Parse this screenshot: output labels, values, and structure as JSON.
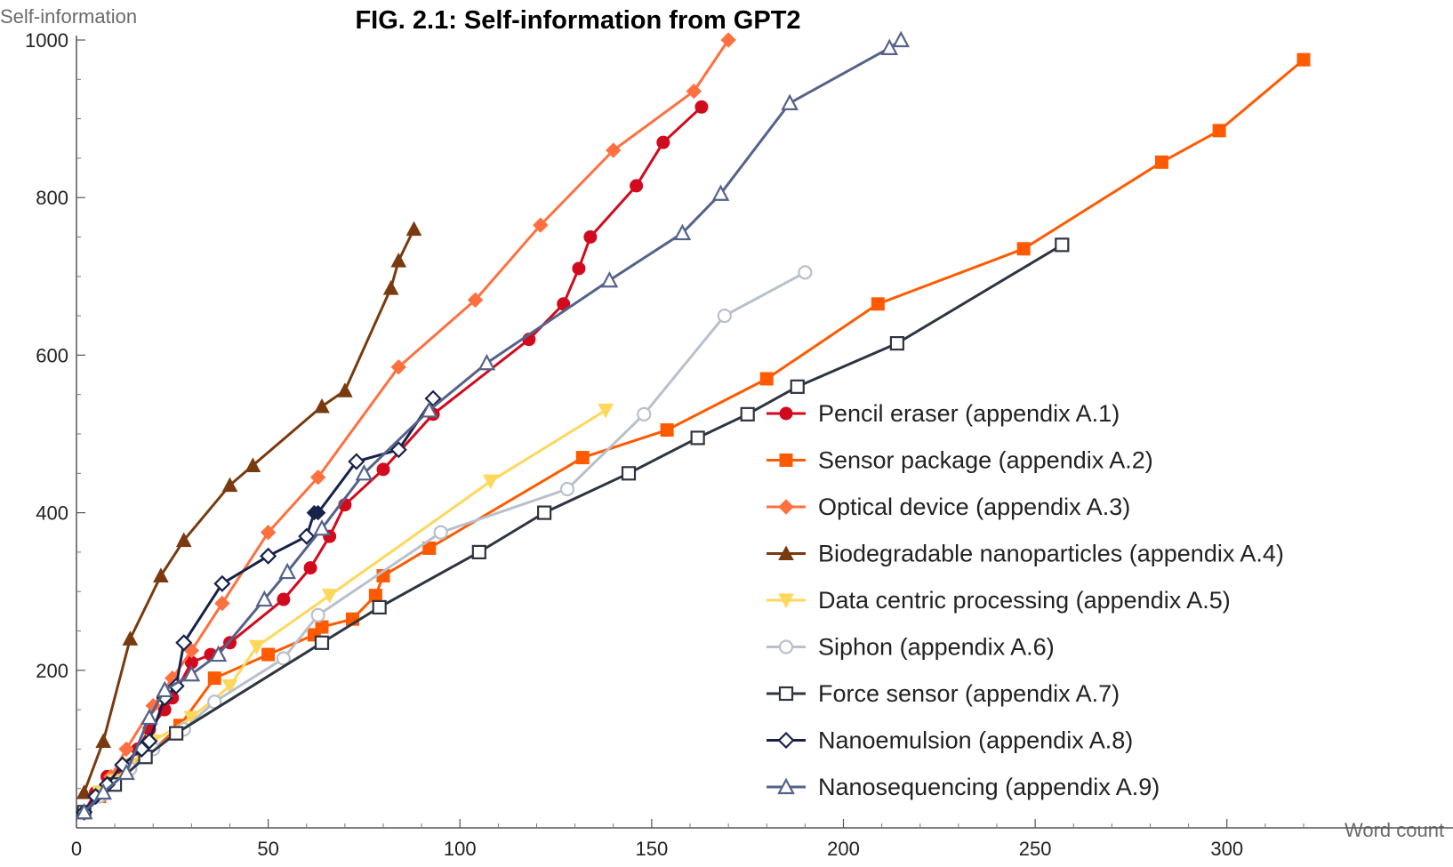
{
  "chart_data": {
    "type": "line",
    "title": "FIG. 2.1: Self-information from GPT2",
    "xlabel": "Word count",
    "ylabel": "Self-information",
    "xlim": [
      0,
      320
    ],
    "ylim": [
      0,
      1000
    ],
    "xticks": [
      0,
      50,
      100,
      150,
      200,
      250,
      300
    ],
    "yticks": [
      200,
      400,
      600,
      800,
      1000
    ],
    "grid": false,
    "legend_position": "right",
    "series": [
      {
        "name": "Pencil eraser (appendix A.1)",
        "color": "#d20a1e",
        "marker": "circle",
        "x": [
          2,
          5,
          8,
          12,
          16,
          19,
          23,
          25,
          30,
          35,
          40,
          54,
          61,
          66,
          70,
          80,
          93,
          118,
          127,
          131,
          134,
          146,
          153,
          163
        ],
        "y": [
          20,
          45,
          65,
          75,
          100,
          125,
          150,
          165,
          210,
          220,
          235,
          290,
          330,
          370,
          410,
          455,
          525,
          620,
          665,
          710,
          750,
          815,
          870,
          915
        ]
      },
      {
        "name": "Sensor package (appendix A.2)",
        "color": "#ff5a00",
        "marker": "square",
        "x": [
          2,
          6,
          10,
          14,
          18,
          27,
          36,
          50,
          62,
          64,
          72,
          78,
          80,
          92,
          132,
          154,
          180,
          209,
          247,
          283,
          298,
          320
        ],
        "y": [
          20,
          40,
          60,
          80,
          90,
          130,
          190,
          220,
          245,
          255,
          265,
          295,
          320,
          355,
          470,
          505,
          570,
          665,
          735,
          845,
          885,
          975
        ],
        "extends_beyond_axes": false
      },
      {
        "name": "Optical device (appendix A.3)",
        "color": "#ff7040",
        "marker": "diamond",
        "x": [
          2,
          6,
          9,
          13,
          20,
          25,
          30,
          38,
          50,
          63,
          84,
          104,
          121,
          140,
          161,
          170
        ],
        "y": [
          20,
          45,
          65,
          100,
          155,
          190,
          225,
          285,
          375,
          445,
          585,
          670,
          765,
          860,
          935,
          1000
        ]
      },
      {
        "name": "Biodegradable nanoparticles (appendix A.4)",
        "color": "#7a3a10",
        "marker": "triangle",
        "x": [
          2,
          7,
          14,
          22,
          28,
          40,
          46,
          64,
          70,
          82,
          84,
          88
        ],
        "y": [
          45,
          110,
          240,
          320,
          365,
          435,
          460,
          535,
          555,
          685,
          720,
          760
        ]
      },
      {
        "name": "Data centric processing (appendix A.5)",
        "color": "#ffd75a",
        "marker": "triangle-down",
        "x": [
          2,
          6,
          10,
          14,
          20,
          30,
          40,
          47,
          66,
          108,
          138
        ],
        "y": [
          20,
          45,
          60,
          80,
          110,
          140,
          180,
          230,
          295,
          440,
          530
        ]
      },
      {
        "name": "Siphon (appendix A.6)",
        "color": "#b8c0cc",
        "marker": "open-circle",
        "x": [
          2,
          6,
          9,
          14,
          20,
          28,
          36,
          54,
          63,
          95,
          128,
          148,
          169,
          190
        ],
        "y": [
          20,
          40,
          55,
          75,
          100,
          125,
          160,
          215,
          270,
          375,
          430,
          525,
          650,
          705
        ]
      },
      {
        "name": "Force sensor (appendix A.7)",
        "color": "#2e3540",
        "marker": "open-square",
        "x": [
          2,
          10,
          18,
          26,
          64,
          79,
          105,
          122,
          144,
          162,
          175,
          188,
          214,
          257
        ],
        "y": [
          20,
          55,
          90,
          120,
          235,
          280,
          350,
          400,
          450,
          495,
          525,
          560,
          615,
          740
        ]
      },
      {
        "name": "Nanoemulsion (appendix A.8)",
        "color": "#17224a",
        "marker": "open-diamond",
        "x": [
          2,
          5,
          8,
          12,
          17,
          19,
          23,
          26,
          28,
          38,
          50,
          60,
          62,
          63,
          73,
          84,
          93
        ],
        "y": [
          20,
          40,
          55,
          80,
          100,
          110,
          165,
          180,
          235,
          310,
          345,
          370,
          400,
          400,
          465,
          480,
          545
        ],
        "filled_points": [
          12,
          13
        ]
      },
      {
        "name": "Nanosequencing (appendix A.9)",
        "color": "#55628a",
        "marker": "open-triangle",
        "x": [
          2,
          7,
          13,
          19,
          23,
          30,
          37,
          49,
          55,
          64,
          75,
          92,
          107,
          139,
          158,
          168,
          186,
          212,
          215
        ],
        "y": [
          20,
          45,
          70,
          140,
          175,
          195,
          220,
          290,
          325,
          380,
          450,
          530,
          590,
          695,
          755,
          805,
          920,
          990,
          1000
        ]
      }
    ]
  }
}
